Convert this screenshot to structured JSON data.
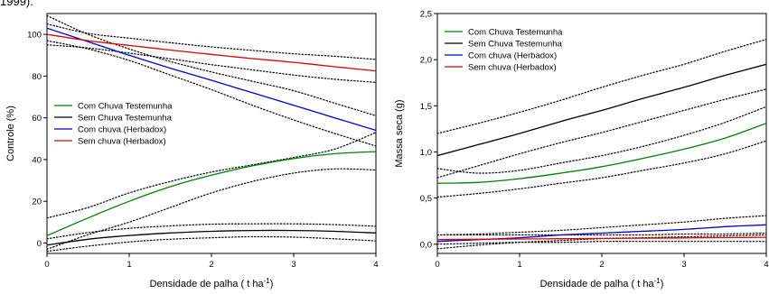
{
  "caption_fragment": "1999).",
  "chart_data": [
    {
      "type": "line",
      "ylabel": "Controle (%)",
      "xlabel": "Densidade de palha ( t ha",
      "xlabel_sup": "-1",
      "xlabel_end": ")",
      "xlim": [
        0,
        4
      ],
      "ylim": [
        -5,
        110
      ],
      "x_ticks": [
        0,
        1,
        2,
        3,
        4
      ],
      "y_ticks": [
        0,
        20,
        40,
        60,
        80,
        100
      ],
      "x_tick_labels": [
        "0",
        "1",
        "2",
        "3",
        "4"
      ],
      "y_tick_labels": [
        "0",
        "20",
        "40",
        "60",
        "80",
        "100"
      ],
      "grid": false,
      "legend_position": "center-left",
      "series": [
        {
          "name": "Com Chuva Testemunha",
          "color": "#008000",
          "x": [
            0,
            0.5,
            1,
            1.5,
            2,
            2.5,
            3,
            3.5,
            4
          ],
          "values": [
            3.5,
            12,
            20,
            27,
            32.5,
            37,
            40.5,
            42.8,
            43.8
          ],
          "ci_lower": [
            -3,
            4,
            10,
            17,
            24,
            29.5,
            33.5,
            35.5,
            35
          ],
          "ci_upper": [
            12,
            17,
            24,
            29.5,
            34,
            37.5,
            41,
            45,
            53
          ]
        },
        {
          "name": "Sem Chuva Testemunha",
          "color": "#000000",
          "x": [
            0,
            0.5,
            1,
            1.5,
            2,
            2.5,
            3,
            3.5,
            4
          ],
          "values": [
            -1,
            1.8,
            3.6,
            4.8,
            5.6,
            6,
            6,
            5.6,
            4.8
          ],
          "ci_lower": [
            -4,
            -1.5,
            0.5,
            1.8,
            2.5,
            3,
            2.8,
            2,
            1
          ],
          "ci_upper": [
            2,
            5,
            7,
            8.2,
            9,
            9.2,
            9.2,
            8.8,
            8
          ]
        },
        {
          "name": "Com chuva (Herbadox)",
          "color": "#0000CC",
          "x": [
            0,
            0.5,
            1,
            1.5,
            2,
            2.5,
            3,
            3.5,
            4
          ],
          "values": [
            103,
            96.5,
            90,
            83.8,
            78,
            72,
            66,
            60,
            54
          ],
          "ci_lower": [
            97,
            93,
            87.5,
            80.5,
            73.5,
            66,
            59,
            52.5,
            46.5
          ],
          "ci_upper": [
            109,
            100,
            93,
            87,
            82,
            77.5,
            73,
            67,
            61
          ]
        },
        {
          "name": "Sem chuva (Herbadox)",
          "color": "#E00000",
          "x": [
            0,
            0.5,
            1,
            1.5,
            2,
            2.5,
            3,
            3.5,
            4
          ],
          "values": [
            100,
            97,
            94.7,
            92.5,
            90.4,
            88.4,
            86.6,
            84.5,
            82.5
          ],
          "ci_lower": [
            95,
            93.5,
            91,
            88.3,
            85.5,
            83,
            80.5,
            78.5,
            77
          ],
          "ci_upper": [
            105,
            100.5,
            98.2,
            96,
            94,
            92.3,
            90.7,
            89.5,
            88
          ]
        }
      ]
    },
    {
      "type": "line",
      "ylabel": "Massa seca (g)",
      "xlabel": "Densidade de palha ( t ha",
      "xlabel_sup": "-1",
      "xlabel_end": ")",
      "xlim": [
        0,
        4
      ],
      "ylim": [
        -0.1,
        2.5
      ],
      "x_ticks": [
        0,
        1,
        2,
        3,
        4
      ],
      "y_ticks": [
        0,
        0.5,
        1,
        1.5,
        2,
        2.5
      ],
      "x_tick_labels": [
        "0",
        "1",
        "2",
        "3",
        "4"
      ],
      "y_tick_labels": [
        "0,0",
        "0,5",
        "1,0",
        "1,5",
        "2,0",
        "2,5"
      ],
      "grid": false,
      "legend_position": "top-left",
      "series": [
        {
          "name": "Com Chuva Testemunha",
          "color": "#008000",
          "x": [
            0,
            0.5,
            1,
            1.5,
            2,
            2.5,
            3,
            3.5,
            4
          ],
          "values": [
            0.66,
            0.67,
            0.71,
            0.77,
            0.84,
            0.93,
            1.03,
            1.15,
            1.31
          ],
          "ci_lower": [
            0.51,
            0.55,
            0.6,
            0.66,
            0.72,
            0.8,
            0.88,
            0.98,
            1.12
          ],
          "ci_upper": [
            0.82,
            0.77,
            0.8,
            0.88,
            0.96,
            1.06,
            1.18,
            1.32,
            1.49
          ]
        },
        {
          "name": "Sem Chuva Testemunha",
          "color": "#000000",
          "x": [
            0,
            0.5,
            1,
            1.5,
            2,
            2.5,
            3,
            3.5,
            4
          ],
          "values": [
            0.96,
            1.08,
            1.2,
            1.33,
            1.45,
            1.58,
            1.7,
            1.83,
            1.95
          ],
          "ci_lower": [
            0.72,
            0.85,
            0.98,
            1.1,
            1.21,
            1.33,
            1.45,
            1.57,
            1.68
          ],
          "ci_upper": [
            1.2,
            1.31,
            1.43,
            1.56,
            1.7,
            1.83,
            1.95,
            2.09,
            2.22
          ]
        },
        {
          "name": "Com chuva (Herbadox)",
          "color": "#0000CC",
          "x": [
            0,
            0.5,
            1,
            1.5,
            2,
            2.5,
            3,
            3.5,
            4
          ],
          "values": [
            0.03,
            0.05,
            0.07,
            0.1,
            0.12,
            0.14,
            0.16,
            0.19,
            0.21
          ],
          "ci_lower": [
            -0.05,
            -0.01,
            0.02,
            0.04,
            0.06,
            0.07,
            0.08,
            0.09,
            0.1
          ],
          "ci_upper": [
            0.1,
            0.11,
            0.13,
            0.15,
            0.18,
            0.21,
            0.24,
            0.28,
            0.31
          ]
        },
        {
          "name": "Sem chuva (Herbadox)",
          "color": "#E00000",
          "x": [
            0,
            0.5,
            1,
            1.5,
            2,
            2.5,
            3,
            3.5,
            4
          ],
          "values": [
            0.05,
            0.053,
            0.056,
            0.059,
            0.062,
            0.065,
            0.068,
            0.071,
            0.075
          ],
          "ci_lower": [
            0.0,
            0.01,
            0.02,
            0.02,
            0.03,
            0.03,
            0.03,
            0.03,
            0.03
          ],
          "ci_upper": [
            0.1,
            0.1,
            0.1,
            0.1,
            0.1,
            0.1,
            0.11,
            0.11,
            0.12
          ]
        }
      ]
    }
  ]
}
